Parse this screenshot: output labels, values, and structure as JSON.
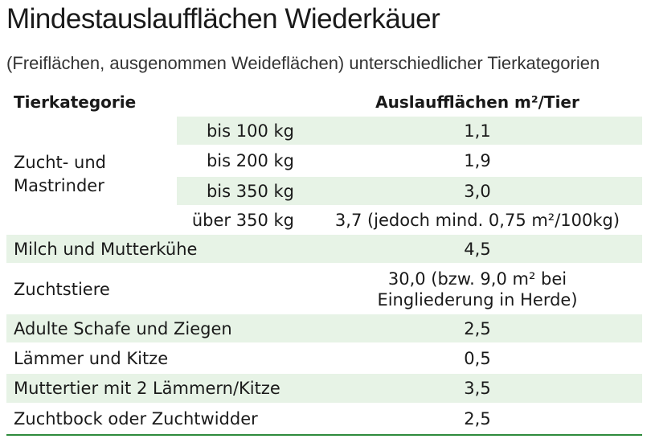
{
  "title": "Mindestauslaufflächen Wiederkäuer",
  "subtitle": "(Freiflächen, ausgenommen Weideflächen) unterschiedlicher Tierkategorien",
  "header": {
    "category": "Tierkategorie",
    "area": "Auslaufflächen m²/Tier"
  },
  "group": {
    "label": "Zucht- und Mastrinder",
    "rows": [
      {
        "weight": "bis 100 kg",
        "value": "1,1"
      },
      {
        "weight": "bis 200 kg",
        "value": "1,9"
      },
      {
        "weight": "bis 350 kg",
        "value": "3,0"
      },
      {
        "weight": "über 350 kg",
        "value": "3,7 (jedoch mind. 0,75 m²/100kg)"
      }
    ]
  },
  "rows": [
    {
      "category": "Milch und Mutterkühe",
      "value": "4,5"
    },
    {
      "category": "Zuchtstiere",
      "value": "30,0 (bzw. 9,0 m² bei Eingliederung in Herde)"
    },
    {
      "category": "Adulte Schafe und Ziegen",
      "value": "2,5"
    },
    {
      "category": "Lämmer und Kitze",
      "value": "0,5"
    },
    {
      "category": "Muttertier mit 2 Lämmern/Kitze",
      "value": "3,5"
    },
    {
      "category": "Zuchtbock oder Zuchtwidder",
      "value": "2,5"
    }
  ],
  "colors": {
    "band": "#e7f3e6",
    "accent": "#2e8b3c"
  }
}
